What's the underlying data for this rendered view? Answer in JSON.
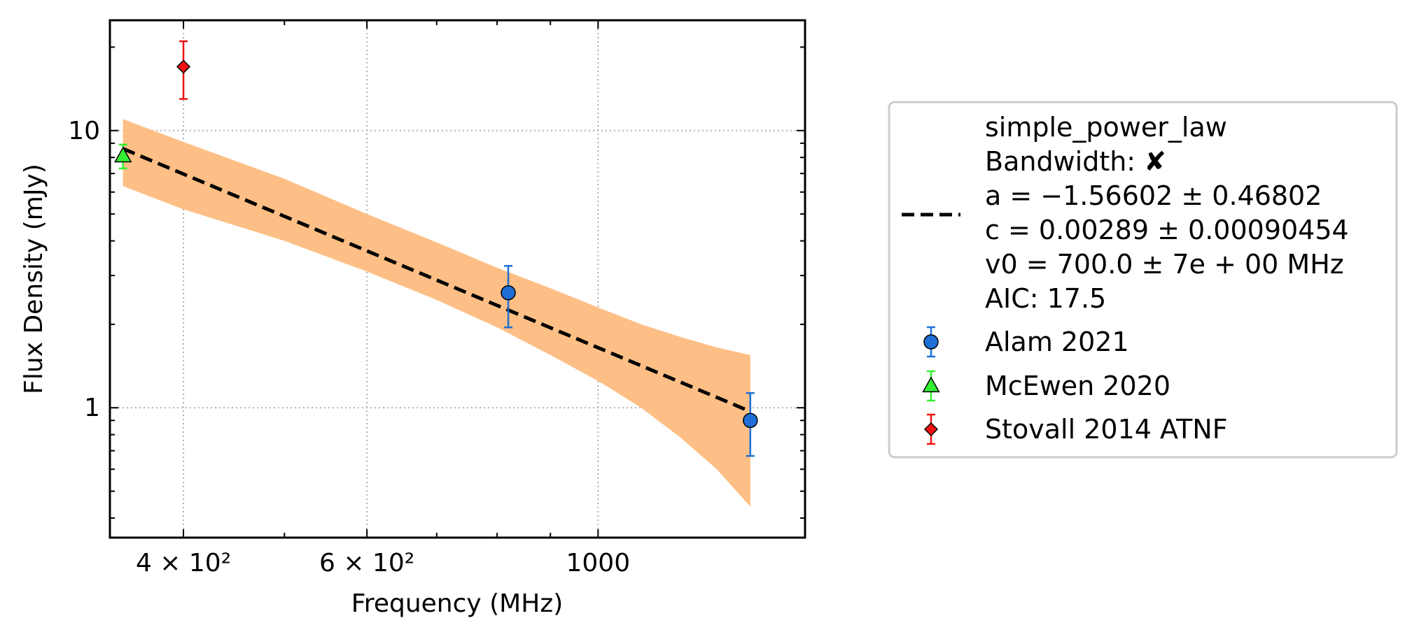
{
  "chart_data": {
    "type": "scatter",
    "title": "",
    "xlabel": "Frequency (MHz)",
    "ylabel": "Flux Density (mJy)",
    "x_scale": "log",
    "y_scale": "log",
    "xlim": [
      340,
      1580
    ],
    "ylim": [
      0.34,
      25
    ],
    "grid": "dotted",
    "legend_position": "right, outside",
    "x_ticks": [
      {
        "value": 400,
        "label": "4 × 10²"
      },
      {
        "value": 600,
        "label": "6 × 10²"
      },
      {
        "value": 1000,
        "label": "1000"
      }
    ],
    "y_ticks": [
      {
        "value": 1,
        "label": "1"
      },
      {
        "value": 10,
        "label": "10"
      }
    ],
    "fit": {
      "label_lines": [
        "simple_power_law",
        "Bandwidth: ✘",
        "a = −1.56602 ± 0.46802",
        "c = 0.00289 ± 0.00090454",
        "v0 = 700.0 ± 7e + 00 MHz",
        "AIC: 17.5"
      ],
      "line_color": "#000000",
      "band_color": "#fdbf85",
      "x": [
        350,
        1400
      ],
      "y": [
        8.6,
        0.97
      ],
      "band": {
        "x": [
          350,
          400,
          500,
          600,
          700,
          800,
          900,
          1000,
          1100,
          1200,
          1300,
          1400
        ],
        "lower": [
          6.3,
          5.2,
          4.0,
          3.1,
          2.45,
          1.95,
          1.55,
          1.25,
          1.0,
          0.78,
          0.6,
          0.44
        ],
        "upper": [
          11.0,
          9.1,
          6.7,
          5.0,
          3.95,
          3.2,
          2.7,
          2.3,
          2.0,
          1.8,
          1.65,
          1.55
        ]
      }
    },
    "series": [
      {
        "name": "Alam 2021",
        "marker": "circle",
        "color": "#1f6fd6",
        "errcolor": "#1f6fd6",
        "points": [
          {
            "x": 820,
            "y": 2.6,
            "lo": 1.95,
            "hi": 3.25
          },
          {
            "x": 1400,
            "y": 0.9,
            "lo": 0.67,
            "hi": 1.13
          }
        ]
      },
      {
        "name": "McEwen 2020",
        "marker": "triangle",
        "color": "#33ee33",
        "errcolor": "#33ee33",
        "points": [
          {
            "x": 350,
            "y": 8.1,
            "lo": 7.3,
            "hi": 8.9
          }
        ]
      },
      {
        "name": "Stovall 2014 ATNF",
        "marker": "diamond",
        "color": "#ee1111",
        "errcolor": "#ee1111",
        "points": [
          {
            "x": 400,
            "y": 17.0,
            "lo": 13.0,
            "hi": 21.0
          }
        ]
      }
    ]
  }
}
